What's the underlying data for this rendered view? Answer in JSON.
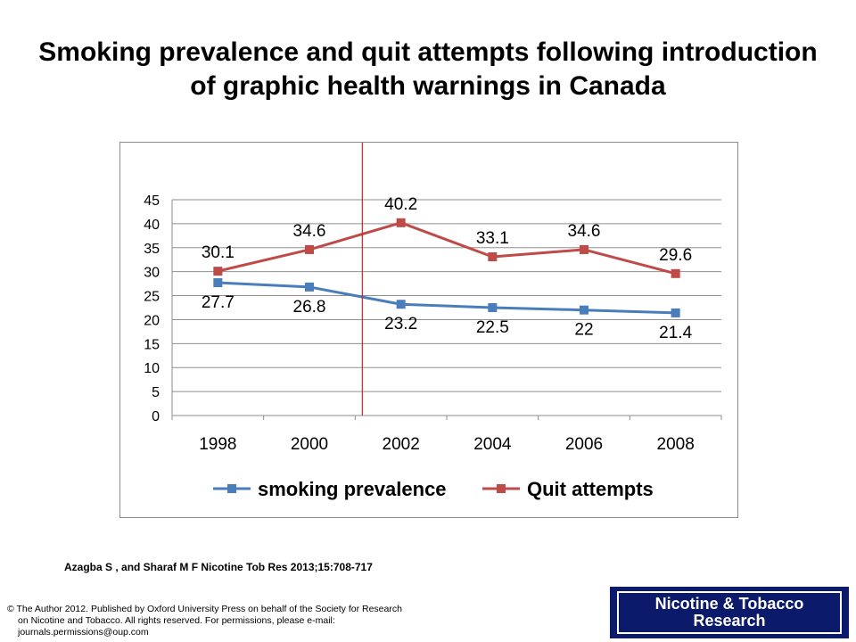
{
  "title": "Smoking prevalence and quit attempts following introduction of graphic health warnings in Canada",
  "citation": "Azagba S , and Sharaf M F Nicotine Tob Res 2013;15:708-717",
  "copyright": {
    "line1": "© The Author 2012. Published by Oxford University Press on behalf of the Society for Research",
    "line2": "on Nicotine and Tobacco. All rights reserved. For permissions, please e-mail:",
    "line3": "journals.permissions@oup.com"
  },
  "journal_logo": {
    "line1": "Nicotine & Tobacco",
    "line2": "Research"
  },
  "colors": {
    "smoking": "#4a7ebb",
    "quit": "#be4b48",
    "marker_line": "#d42020",
    "logo_bg": "#0b1a6a"
  },
  "chart_data": {
    "type": "line",
    "categories": [
      "1998",
      "2000",
      "2002",
      "2004",
      "2006",
      "2008"
    ],
    "series": [
      {
        "name": "smoking prevalence",
        "values": [
          27.7,
          26.8,
          23.2,
          22.5,
          22,
          21.4
        ],
        "labels": [
          "27.7",
          "26.8",
          "23.2",
          "22.5",
          "22",
          "21.4"
        ],
        "label_position": "below"
      },
      {
        "name": "Quit attempts",
        "values": [
          30.1,
          34.6,
          40.2,
          33.1,
          34.6,
          29.6
        ],
        "labels": [
          "30.1",
          "34.6",
          "40.2",
          "33.1",
          "34.6",
          "29.6"
        ],
        "label_position": "above"
      }
    ],
    "yticks": [
      "0",
      "5",
      "10",
      "15",
      "20",
      "25",
      "30",
      "35",
      "40",
      "45"
    ],
    "ylim": [
      0,
      45
    ],
    "grid": true,
    "legend": "bottom",
    "marker_between": [
      "2000",
      "2002"
    ],
    "xlabel": "",
    "ylabel": ""
  }
}
